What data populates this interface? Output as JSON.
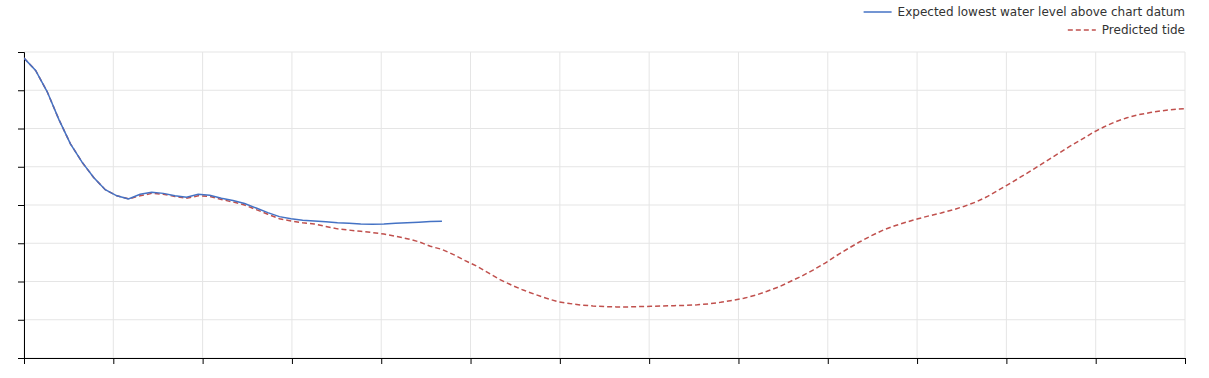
{
  "chart_data": {
    "type": "line",
    "series": [
      {
        "name": "Expected lowest water level above chart datum",
        "color": "#4472c4",
        "line_style": "solid",
        "x": [
          0.0,
          1.0,
          2.0,
          3.0,
          4.0,
          5.0,
          6.0,
          7.0,
          8.0,
          9.0,
          10.0,
          11.0,
          12.0,
          13.0,
          14.0,
          15.0,
          16.0,
          17.0,
          18.0,
          19.0,
          20.0,
          21.0,
          22.0,
          23.0,
          24.0,
          25.0,
          26.0,
          27.0,
          28.0,
          29.0,
          30.0,
          31.0,
          32.0,
          33.0,
          34.0,
          35.0,
          36.0
        ],
        "values": [
          9.8,
          9.4,
          8.7,
          7.8,
          7.0,
          6.4,
          5.9,
          5.5,
          5.3,
          5.2,
          5.35,
          5.42,
          5.38,
          5.3,
          5.25,
          5.35,
          5.32,
          5.22,
          5.15,
          5.05,
          4.9,
          4.75,
          4.62,
          4.55,
          4.5,
          4.48,
          4.45,
          4.42,
          4.4,
          4.38,
          4.37,
          4.38,
          4.4,
          4.42,
          4.44,
          4.46,
          4.47
        ]
      },
      {
        "name": "Predicted tide",
        "color": "#c0504d",
        "line_style": "dashed",
        "x": [
          0.0,
          1.0,
          2.0,
          3.0,
          4.0,
          5.0,
          6.0,
          7.0,
          8.0,
          9.0,
          10.0,
          11.0,
          12.0,
          13.0,
          14.0,
          15.0,
          16.0,
          17.0,
          18.0,
          19.0,
          20.0,
          21.0,
          22.0,
          23.0,
          24.0,
          25.0,
          26.0,
          27.0,
          28.0,
          29.0,
          30.0,
          31.0,
          32.0,
          33.0,
          34.0,
          35.0,
          36.0,
          37.0,
          38.0,
          39.0,
          40.0,
          41.0,
          42.0,
          43.0,
          44.0,
          45.0,
          46.0,
          47.0,
          48.0,
          49.0,
          50.0,
          51.0,
          52.0,
          53.0,
          54.0,
          55.0,
          56.0,
          57.0,
          58.0,
          59.0,
          60.0,
          61.0,
          62.0,
          63.0,
          64.0,
          65.0,
          66.0,
          67.0,
          68.0,
          69.0,
          70.0,
          71.0,
          72.0,
          73.0,
          74.0,
          75.0,
          76.0,
          77.0,
          78.0,
          79.0,
          80.0,
          81.0,
          82.0,
          83.0,
          84.0,
          85.0,
          86.0,
          87.0,
          88.0,
          89.0,
          90.0,
          91.0,
          92.0,
          93.0,
          94.0,
          95.0,
          96.0,
          97.0,
          98.0,
          99.0,
          100.0
        ],
        "values": [
          9.8,
          9.4,
          8.7,
          7.8,
          7.0,
          6.4,
          5.9,
          5.5,
          5.3,
          5.2,
          5.3,
          5.38,
          5.35,
          5.28,
          5.22,
          5.3,
          5.28,
          5.18,
          5.1,
          5.0,
          4.85,
          4.7,
          4.55,
          4.48,
          4.42,
          4.38,
          4.3,
          4.22,
          4.18,
          4.14,
          4.1,
          4.05,
          3.98,
          3.9,
          3.8,
          3.65,
          3.55,
          3.38,
          3.18,
          3.0,
          2.78,
          2.56,
          2.38,
          2.22,
          2.08,
          1.95,
          1.84,
          1.78,
          1.73,
          1.7,
          1.68,
          1.67,
          1.67,
          1.68,
          1.69,
          1.7,
          1.71,
          1.72,
          1.74,
          1.77,
          1.82,
          1.88,
          1.95,
          2.05,
          2.18,
          2.32,
          2.5,
          2.68,
          2.88,
          3.1,
          3.35,
          3.58,
          3.8,
          4.0,
          4.18,
          4.32,
          4.44,
          4.55,
          4.65,
          4.74,
          4.84,
          4.96,
          5.1,
          5.28,
          5.5,
          5.72,
          5.95,
          6.18,
          6.42,
          6.66,
          6.9,
          7.12,
          7.35,
          7.55,
          7.72,
          7.85,
          7.95,
          8.02,
          8.08,
          8.12,
          8.15
        ]
      }
    ],
    "xlim": [
      0,
      100
    ],
    "xticks": [
      0,
      7.6923076923076925,
      15.384615384615385,
      23.076923076923077,
      30.76923076923077,
      38.46153846153846,
      46.15384615384615,
      53.84615384615385,
      61.53846153846154,
      69.23076923076923,
      76.92307692307692,
      84.61538461538461,
      92.3076923076923,
      100
    ],
    "ylim": [
      0,
      10
    ],
    "yticks": [
      0,
      1.25,
      2.5,
      3.75,
      5,
      6.25,
      7.5,
      8.75,
      10
    ],
    "grid": true,
    "legend": "upper right",
    "tick_labels": false
  }
}
